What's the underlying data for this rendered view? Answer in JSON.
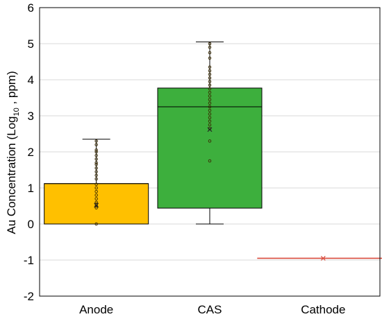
{
  "chart_data": {
    "type": "box",
    "ylabel_main": "Au Concentration (Log",
    "ylabel_sub": "10",
    "ylabel_tail": " , ppm)",
    "ylim": [
      -2,
      6
    ],
    "yticks": [
      -2,
      -1,
      0,
      1,
      2,
      3,
      4,
      5,
      6
    ],
    "ytick_labels": [
      "-2",
      "-1",
      "0",
      "1",
      "2",
      "3",
      "4",
      "5",
      "6"
    ],
    "grid": true,
    "categories": [
      "Anode",
      "CAS",
      "Cathode"
    ],
    "boxes": [
      {
        "category": "Anode",
        "color": "#ffc000",
        "min": 0,
        "q1": 0,
        "median": 1.12,
        "q3": 1.12,
        "max": 2.35,
        "mean": 0.52,
        "points": [
          0,
          0.45,
          0.5,
          0.55,
          0.6,
          0.7,
          0.8,
          0.9,
          1.0,
          1.1,
          1.25,
          1.35,
          1.45,
          1.55,
          1.65,
          1.7,
          1.8,
          1.9,
          2.0,
          2.05,
          2.2,
          2.3
        ]
      },
      {
        "category": "CAS",
        "color": "#3daf3d",
        "min": 0,
        "q1": 0.44,
        "median": 3.25,
        "q3": 3.77,
        "max": 5.05,
        "mean": 2.62,
        "points": [
          1.75,
          2.3,
          2.65,
          2.75,
          2.85,
          2.95,
          3.05,
          3.15,
          3.25,
          3.35,
          3.45,
          3.55,
          3.65,
          3.75,
          3.85,
          3.95,
          4.05,
          4.15,
          4.25,
          4.35,
          4.6,
          4.75,
          4.9,
          5.0
        ]
      },
      {
        "category": "Cathode",
        "color": "#d94a3c",
        "min": -0.95,
        "q1": -0.95,
        "median": -0.95,
        "q3": -0.95,
        "max": -0.95,
        "mean": -0.95,
        "points": []
      }
    ]
  }
}
